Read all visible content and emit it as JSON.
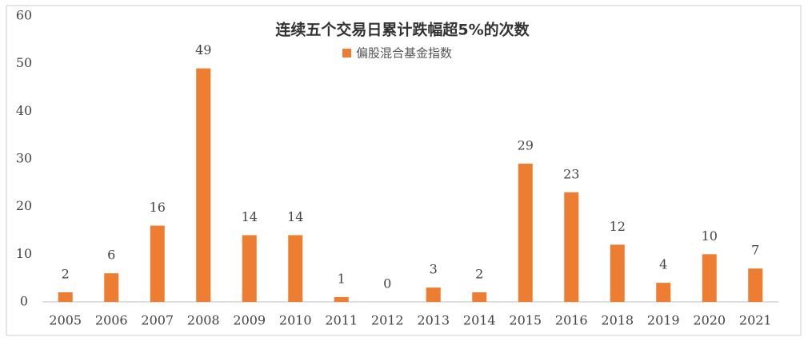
{
  "chart_data": {
    "type": "bar",
    "title": "连续五个交易日累计跌幅超5%的次数",
    "series": [
      {
        "name": "偏股混合基金指数",
        "color": "#ed7d31",
        "values": [
          2,
          6,
          16,
          49,
          14,
          14,
          1,
          0,
          3,
          2,
          29,
          23,
          12,
          4,
          10,
          7
        ]
      }
    ],
    "categories": [
      "2005",
      "2006",
      "2007",
      "2008",
      "2009",
      "2010",
      "2011",
      "2012",
      "2013",
      "2014",
      "2015",
      "2016",
      "2018",
      "2019",
      "2020",
      "2021"
    ],
    "ylim": [
      0,
      60
    ],
    "yticks": [
      0,
      10,
      20,
      30,
      40,
      50,
      60
    ],
    "grid": false,
    "legend": "top"
  }
}
